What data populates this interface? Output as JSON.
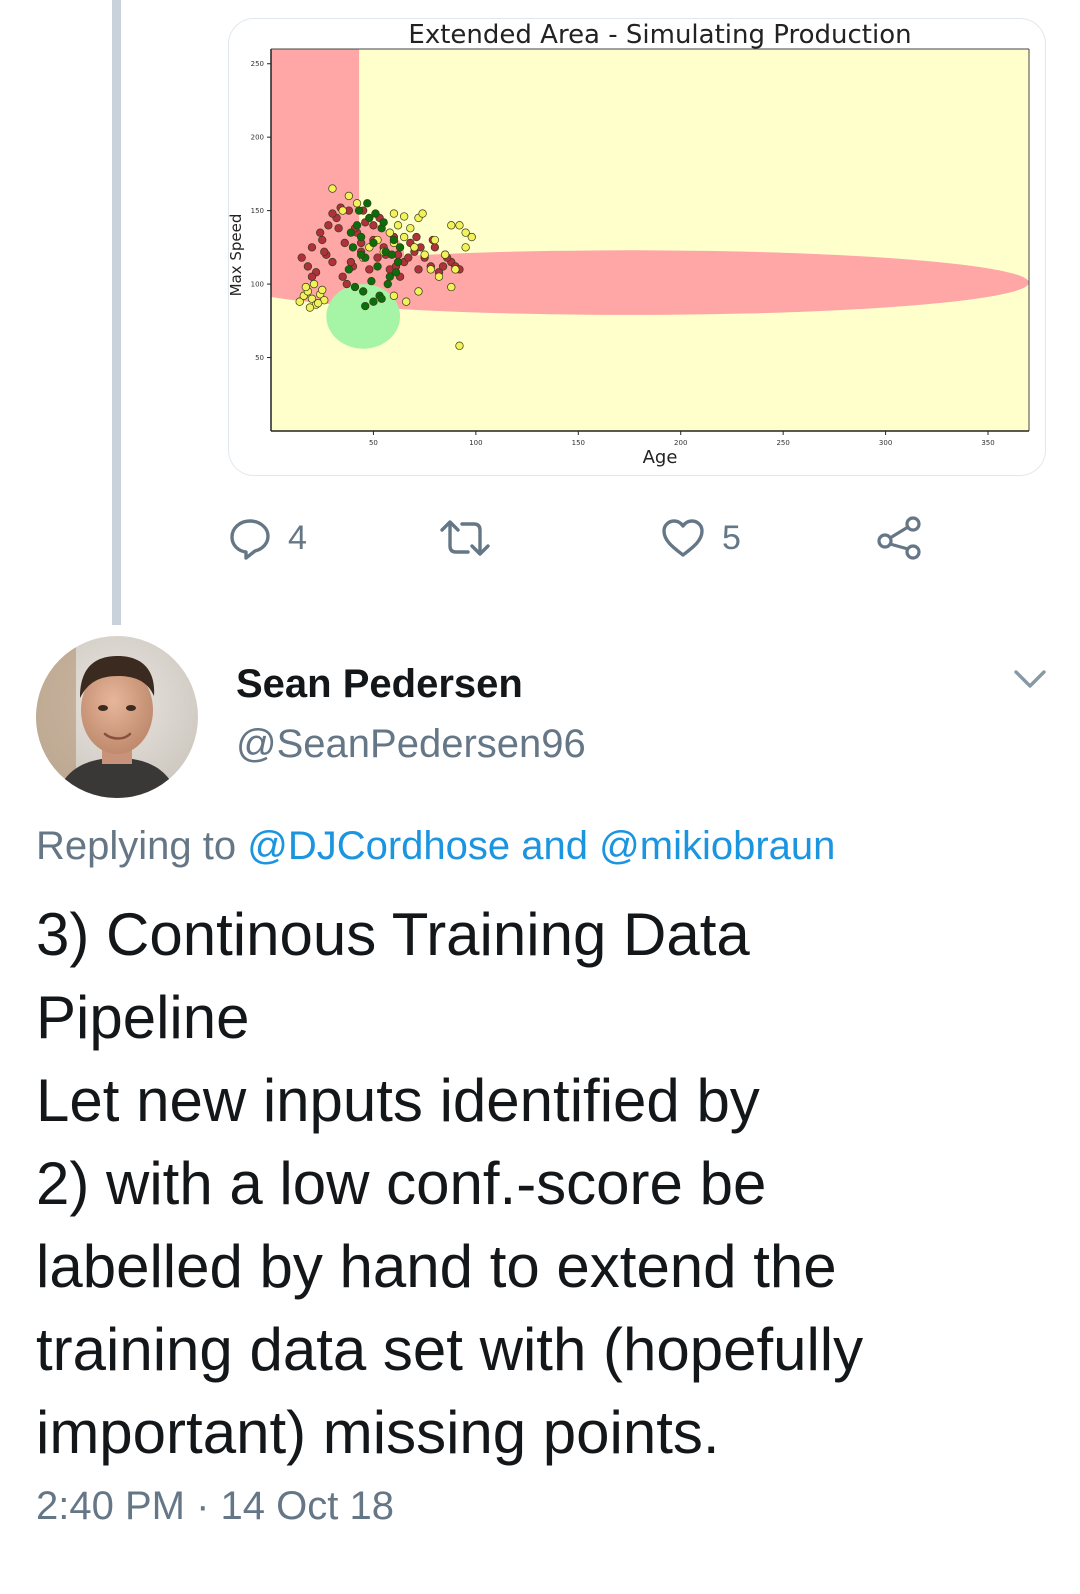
{
  "previous_tweet": {
    "chart_data": {
      "type": "scatter",
      "title": "Extended Area - Simulating Production",
      "xlabel": "Age",
      "ylabel": "Max Speed",
      "xlim": [
        0,
        370
      ],
      "ylim": [
        0,
        260
      ],
      "x_ticks": [
        50,
        100,
        150,
        200,
        250,
        300,
        350
      ],
      "y_ticks": [
        50,
        100,
        150,
        200,
        250
      ],
      "grid": false,
      "colors": {
        "background_region": "#ffffcc",
        "red_region": "#ffa6a6",
        "green_region": "#a6f5a6",
        "red_points": "#b0303c",
        "yellow_points": "#f2f25a",
        "green_points": "#0b6e0b"
      },
      "regions": [
        {
          "class": "red",
          "shape": "rect",
          "x_range": [
            0,
            43
          ],
          "y_range": [
            105,
            260
          ]
        },
        {
          "class": "red",
          "shape": "ellipse",
          "center": [
            175,
            101
          ],
          "radii": [
            195,
            22
          ]
        },
        {
          "class": "red",
          "shape": "ellipse",
          "center": [
            40,
            120
          ],
          "radii": [
            25,
            22
          ]
        },
        {
          "class": "green",
          "shape": "ellipse",
          "center": [
            45,
            78
          ],
          "radii": [
            18,
            22
          ]
        }
      ],
      "series": [
        {
          "class": "red",
          "x": [
            15,
            18,
            20,
            22,
            25,
            27,
            28,
            30,
            32,
            35,
            36,
            38,
            40,
            42,
            44,
            46,
            48,
            50,
            52,
            55,
            58,
            60,
            62,
            65,
            68,
            70,
            72,
            75,
            78,
            80,
            82,
            85,
            88,
            90,
            92,
            24,
            30,
            34,
            37,
            41,
            45,
            50,
            56,
            61,
            67,
            73,
            79,
            84,
            20,
            26,
            33,
            39,
            44,
            53,
            63,
            71,
            86
          ],
          "y": [
            118,
            112,
            125,
            108,
            130,
            120,
            140,
            115,
            145,
            105,
            128,
            150,
            112,
            135,
            122,
            142,
            110,
            130,
            118,
            125,
            110,
            132,
            120,
            115,
            128,
            122,
            110,
            118,
            112,
            125,
            108,
            120,
            115,
            112,
            110,
            135,
            148,
            152,
            100,
            138,
            150,
            140,
            120,
            112,
            118,
            125,
            130,
            112,
            105,
            122,
            138,
            115,
            128,
            145,
            105,
            132,
            118
          ]
        },
        {
          "class": "yellow",
          "x": [
            14,
            16,
            18,
            20,
            22,
            24,
            26,
            17,
            21,
            25,
            19,
            23,
            45,
            48,
            52,
            55,
            58,
            60,
            62,
            65,
            68,
            70,
            72,
            75,
            78,
            80,
            85,
            88,
            90,
            95,
            98,
            60,
            66,
            72,
            38,
            42,
            30,
            35,
            74,
            82,
            92
          ],
          "y": [
            88,
            92,
            95,
            90,
            86,
            93,
            89,
            98,
            100,
            96,
            84,
            87,
            118,
            125,
            130,
            122,
            135,
            128,
            140,
            132,
            138,
            125,
            145,
            120,
            110,
            130,
            120,
            98,
            110,
            125,
            132,
            92,
            88,
            95,
            160,
            155,
            165,
            150,
            148,
            105,
            140
          ]
        },
        {
          "class": "yellow",
          "x": [
            60,
            65,
            88,
            95,
            92
          ],
          "y": [
            148,
            146,
            140,
            135,
            58
          ]
        },
        {
          "class": "green",
          "x": [
            38,
            40,
            42,
            44,
            46,
            48,
            50,
            52,
            54,
            56,
            58,
            60,
            62,
            41,
            45,
            49,
            53,
            57,
            43,
            47,
            51,
            55,
            59,
            61,
            39,
            63,
            50,
            46,
            54,
            44
          ],
          "y": [
            110,
            125,
            140,
            132,
            118,
            145,
            128,
            112,
            138,
            122,
            105,
            130,
            115,
            98,
            95,
            102,
            92,
            100,
            150,
            155,
            148,
            142,
            120,
            108,
            135,
            125,
            88,
            85,
            90,
            120
          ]
        }
      ]
    },
    "actions": {
      "reply_count": "4",
      "like_count": "5"
    }
  },
  "tweet": {
    "author_name": "Sean Pedersen",
    "author_handle": "@SeanPedersen96",
    "replying_prefix": "Replying to ",
    "reply_mention_1": "@DJCordhose",
    "reply_joiner": " and ",
    "reply_mention_2": "@mikiobraun",
    "text_lines": [
      "3) Continous Training Data",
      "Pipeline",
      "Let new inputs identified by",
      "2) with a low conf.-score be",
      "labelled by hand to extend the",
      "training data set with (hopefully",
      "important) missing points."
    ],
    "timestamp": "2:40 PM · 14 Oct 18"
  },
  "icons": {
    "reply": "reply-icon",
    "retweet": "retweet-icon",
    "like": "heart-icon",
    "share": "share-icon",
    "caret": "chevron-down-icon"
  }
}
